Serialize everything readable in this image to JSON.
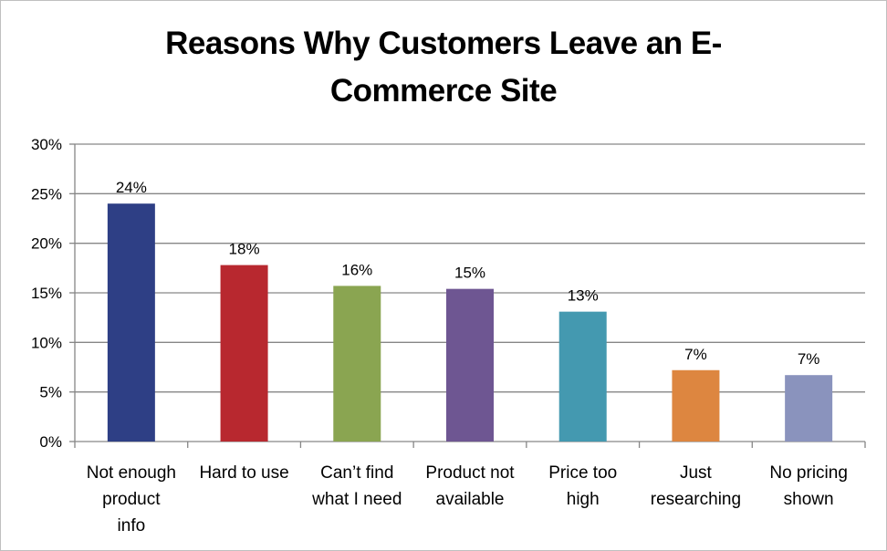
{
  "chart_data": {
    "type": "bar",
    "title_lines": [
      "Reasons Why Customers Leave an  E-",
      "Commerce Site"
    ],
    "categories": [
      [
        "Not enough",
        "product",
        "info"
      ],
      [
        "Hard to  use"
      ],
      [
        "Can’t find",
        "what I need"
      ],
      [
        "Product not",
        "available"
      ],
      [
        "Price too",
        "high"
      ],
      [
        "Just",
        "researching"
      ],
      [
        "No pricing",
        "shown"
      ]
    ],
    "values": [
      24,
      17.8,
      15.7,
      15.4,
      13.1,
      7.2,
      6.7
    ],
    "data_labels": [
      "24%",
      "18%",
      "16%",
      "15%",
      "13%",
      "7%",
      "7%"
    ],
    "colors": [
      "#2e3f85",
      "#b8282f",
      "#8aa551",
      "#6e5692",
      "#4499b0",
      "#dd8640",
      "#8a93bd"
    ],
    "y_ticks": [
      "0%",
      "5%",
      "10%",
      "15%",
      "20%",
      "25%",
      "30%"
    ],
    "ylim": [
      0,
      30
    ],
    "grid": true,
    "legend": "none"
  }
}
